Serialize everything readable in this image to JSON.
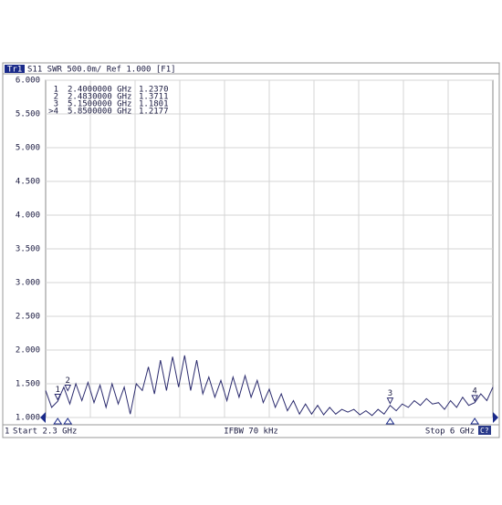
{
  "chart_data": {
    "type": "line",
    "trace": "Tr1",
    "header": "S11  SWR 500.0m/  Ref 1.000  [F1]",
    "channel": "1",
    "start_label": "Start 2.3 GHz",
    "ifbw_label": "IFBW 70 kHz",
    "stop_label": "Stop 6 GHz",
    "button": "C?",
    "xlim": [
      2.3,
      6.0
    ],
    "ylim": [
      1,
      6
    ],
    "yticks": [
      {
        "value": 6,
        "label": "6.000"
      },
      {
        "value": 5.5,
        "label": "5.500"
      },
      {
        "value": 5,
        "label": "5.000"
      },
      {
        "value": 4.5,
        "label": "4.500"
      },
      {
        "value": 4,
        "label": "4.000"
      },
      {
        "value": 3.5,
        "label": "3.500"
      },
      {
        "value": 3,
        "label": "3.000"
      },
      {
        "value": 2.5,
        "label": "2.500"
      },
      {
        "value": 2,
        "label": "2.000"
      },
      {
        "value": 1.5,
        "label": "1.500"
      },
      {
        "value": 1,
        "label": "1.000"
      }
    ],
    "grid": true,
    "series": [
      {
        "color": "#2b2b6e",
        "x": [
          2.3,
          2.35,
          2.4,
          2.45,
          2.5,
          2.55,
          2.6,
          2.65,
          2.7,
          2.75,
          2.8,
          2.85,
          2.9,
          2.95,
          3.0,
          3.05,
          3.1,
          3.15,
          3.2,
          3.25,
          3.3,
          3.35,
          3.4,
          3.45,
          3.5,
          3.55,
          3.6,
          3.65,
          3.7,
          3.75,
          3.8,
          3.85,
          3.9,
          3.95,
          4.0,
          4.05,
          4.1,
          4.15,
          4.2,
          4.25,
          4.3,
          4.35,
          4.4,
          4.45,
          4.5,
          4.55,
          4.6,
          4.65,
          4.7,
          4.75,
          4.8,
          4.85,
          4.9,
          4.95,
          5.0,
          5.05,
          5.1,
          5.15,
          5.2,
          5.25,
          5.3,
          5.35,
          5.4,
          5.45,
          5.5,
          5.55,
          5.6,
          5.65,
          5.7,
          5.75,
          5.8,
          5.85,
          5.9,
          5.95,
          6.0
        ],
        "values": [
          1.4,
          1.15,
          1.24,
          1.45,
          1.2,
          1.5,
          1.25,
          1.52,
          1.22,
          1.48,
          1.15,
          1.5,
          1.2,
          1.45,
          1.05,
          1.5,
          1.4,
          1.75,
          1.35,
          1.85,
          1.4,
          1.9,
          1.45,
          1.92,
          1.4,
          1.85,
          1.35,
          1.6,
          1.3,
          1.55,
          1.25,
          1.6,
          1.3,
          1.62,
          1.3,
          1.55,
          1.22,
          1.42,
          1.15,
          1.35,
          1.1,
          1.25,
          1.05,
          1.2,
          1.05,
          1.18,
          1.04,
          1.15,
          1.05,
          1.12,
          1.08,
          1.12,
          1.04,
          1.1,
          1.03,
          1.12,
          1.05,
          1.18,
          1.1,
          1.2,
          1.15,
          1.25,
          1.18,
          1.28,
          1.2,
          1.22,
          1.12,
          1.25,
          1.15,
          1.3,
          1.18,
          1.22,
          1.35,
          1.25,
          1.45
        ]
      }
    ],
    "markers": [
      {
        "label": "1",
        "table_label": "1",
        "x": 2.4,
        "x_label": "2.4000000 GHz",
        "value": 1.237,
        "value_label": "1.2370"
      },
      {
        "label": "2",
        "table_label": "2",
        "x": 2.483,
        "x_label": "2.4830000 GHz",
        "value": 1.3711,
        "value_label": "1.3711"
      },
      {
        "label": "3",
        "table_label": "3",
        "x": 5.15,
        "x_label": "5.1500000 GHz",
        "value": 1.1801,
        "value_label": "1.1801"
      },
      {
        "label": "4",
        "table_label": ">4",
        "x": 5.85,
        "x_label": "5.8500000 GHz",
        "value": 1.2177,
        "value_label": "1.2177"
      }
    ]
  }
}
